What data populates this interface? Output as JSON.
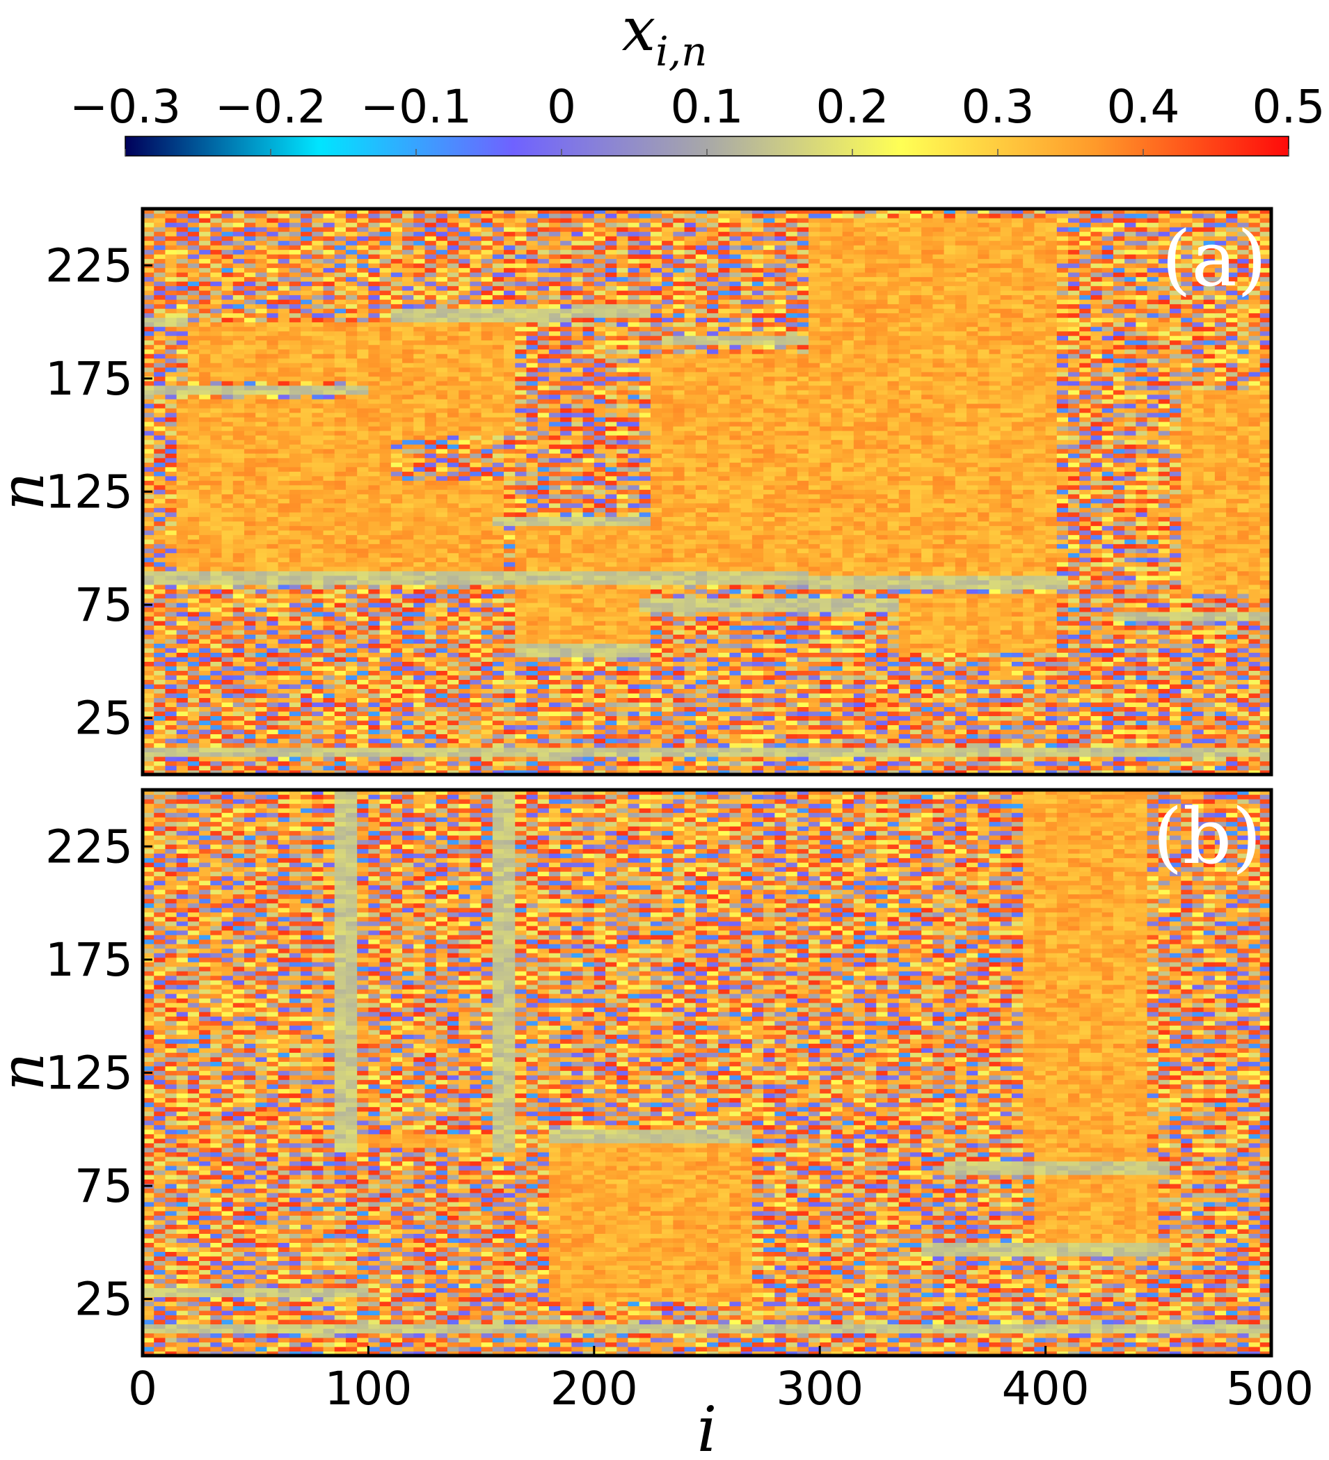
{
  "chart_data": {
    "type": "heatmap",
    "colorbar": {
      "label": "x_{i,n}",
      "label_main": "x",
      "label_sub": "i,n",
      "ticks": [
        -0.3,
        -0.2,
        -0.1,
        0,
        0.1,
        0.2,
        0.3,
        0.4,
        0.5
      ],
      "tick_labels": [
        "−0.3",
        "−0.2",
        "−0.1",
        "0",
        "0.1",
        "0.2",
        "0.3",
        "0.4",
        "0.5"
      ],
      "range": [
        -0.3,
        0.5
      ],
      "placement": "top",
      "colormap_stops": [
        "#00005a",
        "#00e5ff",
        "#6f62ff",
        "#a8a8a8",
        "#ffff55",
        "#ff9a2a",
        "#ff0a0a"
      ]
    },
    "xlabel": "i",
    "ylabel": "n",
    "xlim": [
      0,
      500
    ],
    "ylim": [
      0,
      250
    ],
    "x_ticks": [
      0,
      100,
      200,
      300,
      400,
      500
    ],
    "x_tick_labels": [
      "0",
      "100",
      "200",
      "300",
      "400",
      "500"
    ],
    "y_ticks": [
      25,
      75,
      125,
      175,
      225
    ],
    "y_tick_labels": [
      "25",
      "75",
      "125",
      "175",
      "225"
    ],
    "panels": [
      {
        "tag": "(a)",
        "typical_value_range": [
          -0.1,
          0.5
        ],
        "flat_regions": [
          {
            "i": [
              20,
              90
            ],
            "n": [
              175,
              200
            ]
          },
          {
            "i": [
              90,
              165
            ],
            "n": [
              150,
              200
            ]
          },
          {
            "i": [
              15,
              110
            ],
            "n": [
              85,
              165
            ]
          },
          {
            "i": [
              110,
              160
            ],
            "n": [
              90,
              130
            ]
          },
          {
            "i": [
              165,
              225
            ],
            "n": [
              55,
              110
            ]
          },
          {
            "i": [
              225,
              295
            ],
            "n": [
              85,
              185
            ]
          },
          {
            "i": [
              295,
              405
            ],
            "n": [
              85,
              245
            ]
          },
          {
            "i": [
              460,
              500
            ],
            "n": [
              80,
              170
            ]
          },
          {
            "i": [
              335,
              405
            ],
            "n": [
              55,
              80
            ]
          }
        ],
        "yellow_fronts": [
          {
            "i": [
              0,
              20
            ],
            "n": 200
          },
          {
            "i": [
              110,
              190
            ],
            "n": 203
          },
          {
            "i": [
              190,
              225
            ],
            "n": 205
          },
          {
            "i": [
              230,
              295
            ],
            "n": 192
          },
          {
            "i": [
              0,
              100
            ],
            "n": 170
          },
          {
            "i": [
              0,
              295
            ],
            "n": 87
          },
          {
            "i": [
              295,
              410
            ],
            "n": 85
          },
          {
            "i": [
              155,
              225
            ],
            "n": 112
          },
          {
            "i": [
              165,
              225
            ],
            "n": 55
          },
          {
            "i": [
              220,
              335
            ],
            "n": 75
          },
          {
            "i": [
              430,
              500
            ],
            "n": 70
          },
          {
            "i": [
              0,
              500
            ],
            "n": 10
          }
        ]
      },
      {
        "tag": "(b)",
        "typical_value_range": [
          -0.1,
          0.5
        ],
        "flat_regions": [
          {
            "i": [
              95,
              160
            ],
            "n": 95
          },
          {
            "i": [
              180,
              270
            ],
            "n": [
              25,
              95
            ]
          },
          {
            "i": [
              395,
              450
            ],
            "n": [
              50,
              90
            ]
          },
          {
            "i": [
              390,
              445
            ],
            "n": [
              90,
              250
            ]
          }
        ],
        "yellow_fronts": [
          {
            "i": [
              85,
              95
            ],
            "n": [
              90,
              250
            ]
          },
          {
            "i": [
              155,
              165
            ],
            "n": [
              90,
              250
            ]
          },
          {
            "i": [
              180,
              270
            ],
            "n": 97
          },
          {
            "i": [
              355,
              455
            ],
            "n": 83
          },
          {
            "i": [
              345,
              455
            ],
            "n": 47
          },
          {
            "i": [
              0,
              100
            ],
            "n": 28
          },
          {
            "i": [
              0,
              500
            ],
            "n": 12
          }
        ]
      }
    ]
  }
}
